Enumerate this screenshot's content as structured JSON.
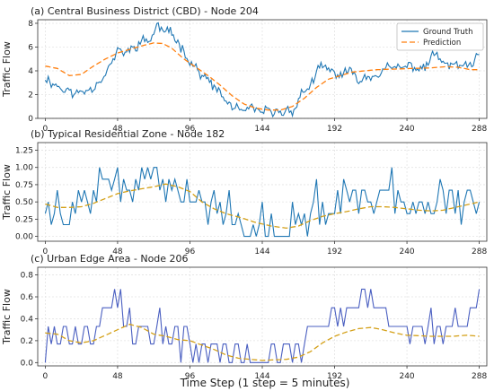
{
  "figure": {
    "xlabel": "Time Step (1 step = 5 minutes)"
  },
  "chart_data": [
    {
      "type": "line",
      "title": "(a) Central Business District (CBD) - Node 204",
      "xlabel": "",
      "ylabel": "Traffic Flow",
      "xlim": [
        -5,
        293
      ],
      "ylim": [
        0,
        8.3
      ],
      "xticks": [
        0,
        48,
        96,
        144,
        192,
        240,
        288
      ],
      "yticks": [
        0,
        2,
        4,
        6,
        8
      ],
      "ytick_labels": [
        "0",
        "2",
        "4",
        "6",
        "8"
      ],
      "grid": true,
      "legend": "top-right",
      "series": [
        {
          "name": "Ground Truth",
          "color": "#1f77b4",
          "dash": "solid",
          "kind": "noisy_gt",
          "amp": 0.7,
          "step": 1,
          "seed": 11,
          "points": [
            [
              0,
              3.5
            ],
            [
              10,
              2.6
            ],
            [
              20,
              2.0
            ],
            [
              30,
              2.6
            ],
            [
              40,
              3.8
            ],
            [
              48,
              5.5
            ],
            [
              56,
              5.6
            ],
            [
              62,
              6.4
            ],
            [
              70,
              6.6
            ],
            [
              74,
              7.8
            ],
            [
              80,
              7.2
            ],
            [
              86,
              6.8
            ],
            [
              92,
              5.9
            ],
            [
              96,
              4.9
            ],
            [
              104,
              3.6
            ],
            [
              112,
              2.6
            ],
            [
              120,
              1.4
            ],
            [
              130,
              0.5
            ],
            [
              140,
              0.6
            ],
            [
              150,
              0.4
            ],
            [
              160,
              0.6
            ],
            [
              166,
              1.0
            ],
            [
              170,
              2.0
            ],
            [
              176,
              2.9
            ],
            [
              184,
              4.3
            ],
            [
              192,
              3.7
            ],
            [
              200,
              3.8
            ],
            [
              210,
              3.3
            ],
            [
              220,
              3.9
            ],
            [
              228,
              4.1
            ],
            [
              236,
              4.2
            ],
            [
              244,
              4.4
            ],
            [
              252,
              4.2
            ],
            [
              258,
              5.5
            ],
            [
              266,
              4.3
            ],
            [
              272,
              4.6
            ],
            [
              280,
              4.1
            ],
            [
              288,
              5.2
            ]
          ]
        },
        {
          "name": "Prediction",
          "color": "#ff7f0e",
          "dash": "6,3",
          "kind": "smooth",
          "points": [
            [
              0,
              4.4
            ],
            [
              8,
              4.2
            ],
            [
              16,
              3.6
            ],
            [
              24,
              3.7
            ],
            [
              32,
              4.4
            ],
            [
              40,
              5.0
            ],
            [
              48,
              5.5
            ],
            [
              56,
              5.8
            ],
            [
              64,
              6.1
            ],
            [
              72,
              6.35
            ],
            [
              78,
              6.3
            ],
            [
              84,
              5.9
            ],
            [
              92,
              5.0
            ],
            [
              100,
              4.3
            ],
            [
              108,
              3.6
            ],
            [
              116,
              2.8
            ],
            [
              124,
              1.9
            ],
            [
              132,
              1.2
            ],
            [
              140,
              0.85
            ],
            [
              148,
              0.7
            ],
            [
              156,
              0.7
            ],
            [
              164,
              1.0
            ],
            [
              172,
              1.7
            ],
            [
              180,
              2.6
            ],
            [
              188,
              3.3
            ],
            [
              196,
              3.6
            ],
            [
              204,
              3.9
            ],
            [
              212,
              4.0
            ],
            [
              220,
              4.1
            ],
            [
              232,
              4.15
            ],
            [
              244,
              4.2
            ],
            [
              256,
              4.25
            ],
            [
              266,
              4.35
            ],
            [
              274,
              4.3
            ],
            [
              282,
              4.1
            ],
            [
              288,
              4.1
            ]
          ]
        }
      ]
    },
    {
      "type": "line",
      "title": "(b) Typical Residential Zone - Node 182",
      "xlabel": "",
      "ylabel": "Traffic Flow",
      "xlim": [
        -5,
        293
      ],
      "ylim": [
        -0.07,
        1.36
      ],
      "xticks": [
        0,
        48,
        96,
        144,
        192,
        240,
        288
      ],
      "yticks": [
        0,
        0.25,
        0.5,
        0.75,
        1.0,
        1.25
      ],
      "ytick_labels": [
        "0.00",
        "0.25",
        "0.50",
        "0.75",
        "1.00",
        "1.25"
      ],
      "grid": true,
      "legend": "none",
      "series": [
        {
          "name": "",
          "color": "#1f77b4",
          "dash": "solid",
          "kind": "step_gt",
          "step": 2,
          "seed": 7,
          "levels": [
            0,
            0.17,
            0.33,
            0.5,
            0.67,
            0.83,
            1.0,
            1.17,
            1.33
          ],
          "points": [
            [
              0,
              0.4
            ],
            [
              8,
              0.45
            ],
            [
              14,
              0.1
            ],
            [
              22,
              0.5
            ],
            [
              30,
              0.55
            ],
            [
              40,
              0.85
            ],
            [
              50,
              0.7
            ],
            [
              58,
              0.65
            ],
            [
              66,
              0.8
            ],
            [
              74,
              0.85
            ],
            [
              82,
              0.75
            ],
            [
              92,
              0.7
            ],
            [
              100,
              0.55
            ],
            [
              108,
              0.35
            ],
            [
              116,
              0.3
            ],
            [
              124,
              0.25
            ],
            [
              132,
              0.2
            ],
            [
              140,
              0.15
            ],
            [
              150,
              0.15
            ],
            [
              160,
              0.1
            ],
            [
              170,
              0.2
            ],
            [
              180,
              0.25
            ],
            [
              190,
              0.5
            ],
            [
              200,
              0.6
            ],
            [
              208,
              0.55
            ],
            [
              216,
              0.45
            ],
            [
              224,
              0.5
            ],
            [
              232,
              0.45
            ],
            [
              240,
              0.4
            ],
            [
              248,
              0.4
            ],
            [
              256,
              0.45
            ],
            [
              266,
              0.5
            ],
            [
              276,
              0.45
            ],
            [
              288,
              0.5
            ]
          ]
        },
        {
          "name": "",
          "color": "#d4a017",
          "dash": "6,3",
          "kind": "smooth",
          "points": [
            [
              0,
              0.47
            ],
            [
              8,
              0.42
            ],
            [
              16,
              0.42
            ],
            [
              24,
              0.43
            ],
            [
              32,
              0.48
            ],
            [
              40,
              0.55
            ],
            [
              48,
              0.62
            ],
            [
              56,
              0.66
            ],
            [
              64,
              0.69
            ],
            [
              72,
              0.72
            ],
            [
              80,
              0.76
            ],
            [
              88,
              0.72
            ],
            [
              96,
              0.65
            ],
            [
              104,
              0.5
            ],
            [
              112,
              0.4
            ],
            [
              120,
              0.33
            ],
            [
              130,
              0.27
            ],
            [
              140,
              0.2
            ],
            [
              150,
              0.15
            ],
            [
              160,
              0.12
            ],
            [
              168,
              0.15
            ],
            [
              176,
              0.23
            ],
            [
              184,
              0.29
            ],
            [
              192,
              0.33
            ],
            [
              200,
              0.36
            ],
            [
              208,
              0.4
            ],
            [
              216,
              0.43
            ],
            [
              224,
              0.43
            ],
            [
              232,
              0.42
            ],
            [
              240,
              0.4
            ],
            [
              248,
              0.38
            ],
            [
              256,
              0.37
            ],
            [
              264,
              0.38
            ],
            [
              272,
              0.42
            ],
            [
              280,
              0.46
            ],
            [
              288,
              0.5
            ]
          ]
        }
      ]
    },
    {
      "type": "line",
      "title": "(c) Urban Edge Area - Node 206",
      "xlabel": "Time Step (1 step = 5 minutes)",
      "ylabel": "Traffic Flow",
      "xlim": [
        -5,
        293
      ],
      "ylim": [
        -0.03,
        0.87
      ],
      "xticks": [
        0,
        48,
        96,
        144,
        192,
        240,
        288
      ],
      "yticks": [
        0,
        0.2,
        0.4,
        0.6,
        0.8
      ],
      "ytick_labels": [
        "0.0",
        "0.2",
        "0.4",
        "0.6",
        "0.8"
      ],
      "grid": true,
      "legend": "none",
      "series": [
        {
          "name": "",
          "color": "#4a5fc1",
          "dash": "solid",
          "kind": "step_gt",
          "step": 2,
          "seed": 3,
          "levels": [
            0,
            0.17,
            0.33,
            0.5,
            0.67,
            0.83
          ],
          "points": [
            [
              0,
              0.1
            ],
            [
              8,
              0.3
            ],
            [
              16,
              0.25
            ],
            [
              24,
              0.2
            ],
            [
              32,
              0.3
            ],
            [
              40,
              0.45
            ],
            [
              46,
              0.6
            ],
            [
              52,
              0.4
            ],
            [
              60,
              0.3
            ],
            [
              68,
              0.25
            ],
            [
              76,
              0.35
            ],
            [
              84,
              0.2
            ],
            [
              92,
              0.15
            ],
            [
              100,
              0.12
            ],
            [
              108,
              0.08
            ],
            [
              116,
              0.05
            ],
            [
              124,
              0.03
            ],
            [
              132,
              0.02
            ],
            [
              140,
              0.02
            ],
            [
              150,
              0.02
            ],
            [
              160,
              0.03
            ],
            [
              170,
              0.1
            ],
            [
              180,
              0.3
            ],
            [
              190,
              0.4
            ],
            [
              200,
              0.45
            ],
            [
              208,
              0.55
            ],
            [
              214,
              0.6
            ],
            [
              222,
              0.45
            ],
            [
              232,
              0.35
            ],
            [
              242,
              0.3
            ],
            [
              252,
              0.25
            ],
            [
              262,
              0.3
            ],
            [
              272,
              0.35
            ],
            [
              280,
              0.45
            ],
            [
              288,
              0.45
            ]
          ]
        },
        {
          "name": "",
          "color": "#d4a017",
          "dash": "6,3",
          "kind": "smooth",
          "points": [
            [
              0,
              0.27
            ],
            [
              8,
              0.26
            ],
            [
              16,
              0.2
            ],
            [
              24,
              0.18
            ],
            [
              32,
              0.2
            ],
            [
              40,
              0.25
            ],
            [
              48,
              0.3
            ],
            [
              56,
              0.35
            ],
            [
              64,
              0.32
            ],
            [
              72,
              0.26
            ],
            [
              80,
              0.24
            ],
            [
              88,
              0.21
            ],
            [
              96,
              0.2
            ],
            [
              104,
              0.16
            ],
            [
              112,
              0.12
            ],
            [
              120,
              0.07
            ],
            [
              128,
              0.04
            ],
            [
              136,
              0.03
            ],
            [
              144,
              0.02
            ],
            [
              152,
              0.025
            ],
            [
              160,
              0.03
            ],
            [
              168,
              0.05
            ],
            [
              176,
              0.1
            ],
            [
              184,
              0.18
            ],
            [
              192,
              0.24
            ],
            [
              200,
              0.28
            ],
            [
              208,
              0.31
            ],
            [
              216,
              0.32
            ],
            [
              224,
              0.3
            ],
            [
              232,
              0.27
            ],
            [
              240,
              0.25
            ],
            [
              256,
              0.24
            ],
            [
              270,
              0.24
            ],
            [
              280,
              0.25
            ],
            [
              288,
              0.24
            ]
          ]
        }
      ]
    }
  ]
}
